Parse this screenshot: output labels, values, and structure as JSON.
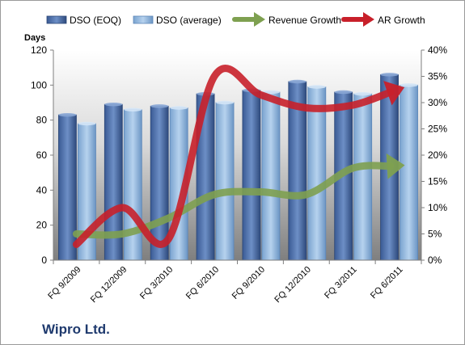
{
  "company": "Wipro Ltd.",
  "colors": {
    "dso_eoq": "#4f6fa8",
    "dso_avg": "#8fb6dc",
    "revenue_growth": "#7ea050",
    "ar_growth": "#c8202a",
    "plot_bg_top": "#ffffff",
    "plot_bg_bottom": "#7f7f7f"
  },
  "chart_data": {
    "type": "bar",
    "categories": [
      "FQ 9/2009",
      "FQ 12/2009",
      "FQ 3/2010",
      "FQ 6/2010",
      "FQ 9/2010",
      "FQ 12/2010",
      "FQ 3/2011",
      "FQ 6/2011"
    ],
    "series": [
      {
        "name": "DSO (EOQ)",
        "type": "bar",
        "axis": "left",
        "values": [
          83,
          89,
          88,
          95,
          97,
          102,
          96,
          106
        ]
      },
      {
        "name": "DSO (average)",
        "type": "bar",
        "axis": "left",
        "values": [
          78,
          86,
          87,
          90,
          96,
          99,
          95,
          100
        ]
      },
      {
        "name": "Revenue Growth",
        "type": "line",
        "axis": "right",
        "unit": "%",
        "values": [
          5,
          5,
          8,
          12.5,
          13,
          12.5,
          17.5,
          18
        ]
      },
      {
        "name": "AR Growth",
        "type": "line",
        "axis": "right",
        "unit": "%",
        "values": [
          3,
          10,
          4,
          35,
          31.5,
          29,
          29.5,
          32.5
        ]
      }
    ],
    "ylabel": "Days",
    "ylim": [
      0,
      120
    ],
    "yticks": [
      0,
      20,
      40,
      60,
      80,
      100,
      120
    ],
    "y2lim": [
      0,
      40
    ],
    "y2ticks": [
      "0%",
      "5%",
      "10%",
      "15%",
      "20%",
      "25%",
      "30%",
      "35%",
      "40%"
    ],
    "legend": "top",
    "grid": false
  }
}
